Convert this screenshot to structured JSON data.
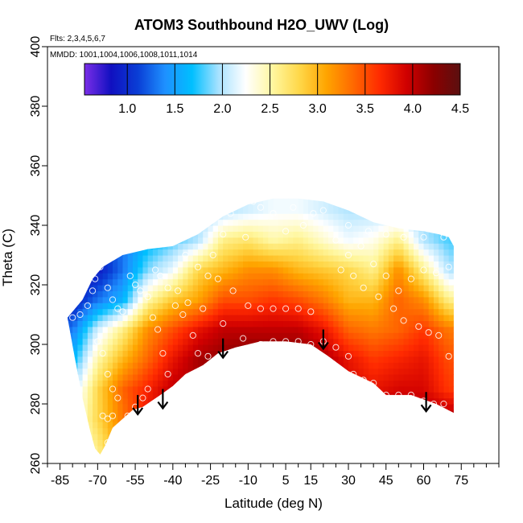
{
  "chart_data": {
    "type": "heatmap",
    "title": "ATOM3 Southbound H2O_UWV (Log)",
    "flights_note": "Flts: 2,3,4,5,6,7",
    "dates_note": "MMDD: 1001,1004,1006,1008,1011,1014",
    "xlabel": "Latitude (deg N)",
    "ylabel": "Theta (C)",
    "xlim": [
      -90,
      90
    ],
    "ylim": [
      260,
      400
    ],
    "x_ticks": [
      -85,
      -70,
      -55,
      -40,
      -25,
      -10,
      5,
      15,
      30,
      45,
      60,
      75
    ],
    "x_tick_labels": [
      "-85",
      "-70",
      "-55",
      "-40",
      "-25",
      "-10",
      "5",
      "15",
      "30",
      "45",
      "60",
      "75"
    ],
    "x_minor_ticks": [
      -90,
      -80,
      -75,
      -65,
      -60,
      -50,
      -45,
      -35,
      -30,
      -20,
      -15,
      -5,
      0,
      10,
      20,
      25,
      35,
      40,
      50,
      55,
      65,
      70,
      80,
      85,
      90
    ],
    "y_ticks": [
      260,
      280,
      300,
      320,
      340,
      360,
      380,
      400
    ],
    "y_tick_labels": [
      "260",
      "280",
      "300",
      "320",
      "340",
      "360",
      "380",
      "400"
    ],
    "colorbar": {
      "range": [
        0.55,
        4.5
      ],
      "ticks": [
        1.0,
        1.5,
        2.0,
        2.5,
        3.0,
        3.5,
        4.0,
        4.5
      ],
      "tick_labels": [
        "1.0",
        "1.5",
        "2.0",
        "2.5",
        "3.0",
        "3.5",
        "4.0",
        "4.5"
      ],
      "colors": [
        "#7b2ee8",
        "#1010c0",
        "#0a3fd6",
        "#1e90ff",
        "#00bfff",
        "#a8e2ff",
        "#ffffff",
        "#fff7a0",
        "#ffd84a",
        "#ffa500",
        "#ff6a00",
        "#ff2a00",
        "#d00000",
        "#8b0000",
        "#5a1010"
      ]
    },
    "upper_boundary": [
      [
        -82,
        309
      ],
      [
        -76,
        315
      ],
      [
        -72,
        322
      ],
      [
        -68,
        326
      ],
      [
        -60,
        330
      ],
      [
        -50,
        332
      ],
      [
        -40,
        333
      ],
      [
        -30,
        337
      ],
      [
        -20,
        343
      ],
      [
        -10,
        347
      ],
      [
        0,
        349
      ],
      [
        10,
        349
      ],
      [
        20,
        348
      ],
      [
        30,
        345
      ],
      [
        40,
        341
      ],
      [
        50,
        339
      ],
      [
        60,
        338
      ],
      [
        66,
        337
      ],
      [
        70,
        336
      ],
      [
        72,
        333
      ]
    ],
    "lower_boundary": [
      [
        72,
        277
      ],
      [
        65,
        280
      ],
      [
        55,
        283
      ],
      [
        45,
        283
      ],
      [
        40,
        287
      ],
      [
        30,
        291
      ],
      [
        22,
        296
      ],
      [
        15,
        300
      ],
      [
        5,
        301
      ],
      [
        -5,
        301
      ],
      [
        -15,
        299
      ],
      [
        -22,
        297
      ],
      [
        -28,
        293
      ],
      [
        -35,
        290
      ],
      [
        -40,
        286
      ],
      [
        -45,
        283
      ],
      [
        -52,
        279
      ],
      [
        -56,
        278
      ],
      [
        -60,
        275
      ],
      [
        -64,
        272
      ],
      [
        -67,
        266
      ],
      [
        -69,
        263
      ],
      [
        -71,
        265
      ],
      [
        -73,
        271
      ],
      [
        -76,
        282
      ],
      [
        -79,
        295
      ],
      [
        -82,
        309
      ]
    ],
    "color_field": {
      "lat_nodes": [
        -80,
        -70,
        -60,
        -50,
        -40,
        -30,
        -20,
        -10,
        0,
        10,
        20,
        30,
        40,
        50,
        60,
        70
      ],
      "theta_nodes": [
        265,
        275,
        285,
        295,
        305,
        315,
        325,
        335,
        345
      ],
      "values": [
        [
          2.3,
          2.6,
          3.2,
          3.7,
          3.9,
          4.0,
          4.1,
          4.1,
          4.1,
          4.1,
          4.0,
          4.0,
          4.1,
          4.1,
          4.1,
          4.1
        ],
        [
          2.2,
          2.8,
          3.3,
          3.8,
          4.0,
          4.1,
          4.1,
          4.1,
          4.1,
          4.1,
          4.0,
          4.0,
          4.1,
          4.1,
          4.1,
          4.1
        ],
        [
          2.0,
          2.8,
          3.4,
          3.7,
          4.0,
          4.1,
          4.2,
          4.2,
          4.2,
          4.2,
          4.1,
          3.9,
          3.8,
          3.9,
          3.9,
          3.6
        ],
        [
          1.6,
          2.5,
          3.0,
          3.4,
          3.8,
          4.1,
          4.2,
          4.3,
          4.3,
          4.3,
          4.1,
          3.8,
          3.6,
          3.7,
          3.8,
          3.5
        ],
        [
          1.3,
          2.1,
          2.6,
          3.2,
          3.5,
          3.8,
          4.0,
          4.0,
          4.0,
          4.0,
          3.8,
          3.4,
          3.3,
          3.4,
          3.6,
          3.3
        ],
        [
          0.9,
          1.3,
          1.6,
          2.5,
          2.9,
          3.1,
          3.5,
          3.5,
          3.6,
          3.5,
          3.3,
          3.0,
          3.0,
          3.4,
          3.2,
          2.6
        ],
        [
          0.8,
          0.9,
          1.3,
          1.9,
          2.2,
          2.8,
          3.0,
          3.2,
          3.2,
          3.0,
          2.9,
          2.8,
          2.6,
          3.2,
          2.6,
          2.0
        ],
        [
          0.9,
          1.0,
          1.3,
          1.6,
          1.8,
          2.0,
          2.6,
          2.7,
          2.5,
          2.6,
          2.4,
          2.2,
          2.3,
          2.6,
          2.0,
          1.8
        ],
        [
          1.0,
          1.2,
          1.4,
          1.6,
          1.8,
          1.9,
          2.0,
          2.1,
          2.2,
          2.2,
          2.1,
          2.0,
          2.0,
          2.0,
          1.9,
          1.8
        ]
      ]
    },
    "obs_points": [
      [
        -80,
        309
      ],
      [
        -77,
        310
      ],
      [
        -74,
        313
      ],
      [
        -72,
        318
      ],
      [
        -71,
        322
      ],
      [
        -69,
        326
      ],
      [
        -66,
        319
      ],
      [
        -64,
        315
      ],
      [
        -62,
        312
      ],
      [
        -60,
        311
      ],
      [
        -70,
        301
      ],
      [
        -68,
        297
      ],
      [
        -66,
        290
      ],
      [
        -64,
        285
      ],
      [
        -62,
        282
      ],
      [
        -68,
        276
      ],
      [
        -66,
        275
      ],
      [
        -64,
        276
      ],
      [
        -66,
        267
      ],
      [
        -57,
        323
      ],
      [
        -55,
        320
      ],
      [
        -53,
        318
      ],
      [
        -50,
        316
      ],
      [
        -47,
        325
      ],
      [
        -45,
        323
      ],
      [
        -42,
        319
      ],
      [
        -48,
        309
      ],
      [
        -46,
        305
      ],
      [
        -44,
        297
      ],
      [
        -42,
        290
      ],
      [
        -50,
        285
      ],
      [
        -52,
        282
      ],
      [
        -55,
        279
      ],
      [
        -58,
        276
      ],
      [
        -39,
        313
      ],
      [
        -36,
        310
      ],
      [
        -32,
        303
      ],
      [
        -30,
        297
      ],
      [
        -26,
        296
      ],
      [
        -28,
        312
      ],
      [
        -24,
        330
      ],
      [
        -20,
        337
      ],
      [
        -17,
        344
      ],
      [
        -14,
        347
      ],
      [
        -11,
        336
      ],
      [
        -8,
        348
      ],
      [
        -5,
        346
      ],
      [
        0,
        344
      ],
      [
        5,
        338
      ],
      [
        8,
        346
      ],
      [
        12,
        340
      ],
      [
        16,
        344
      ],
      [
        20,
        345
      ],
      [
        -16,
        318
      ],
      [
        -10,
        313
      ],
      [
        -5,
        312
      ],
      [
        0,
        312
      ],
      [
        5,
        312
      ],
      [
        10,
        312
      ],
      [
        15,
        311
      ],
      [
        -20,
        307
      ],
      [
        -12,
        302
      ],
      [
        -5,
        300
      ],
      [
        0,
        301
      ],
      [
        5,
        301
      ],
      [
        10,
        301
      ],
      [
        15,
        300
      ],
      [
        20,
        301
      ],
      [
        25,
        299
      ],
      [
        30,
        296
      ],
      [
        32,
        290
      ],
      [
        36,
        288
      ],
      [
        40,
        287
      ],
      [
        45,
        283
      ],
      [
        50,
        283
      ],
      [
        55,
        283
      ],
      [
        60,
        281
      ],
      [
        64,
        280
      ],
      [
        68,
        280
      ],
      [
        70,
        276
      ],
      [
        25,
        335
      ],
      [
        30,
        330
      ],
      [
        35,
        333
      ],
      [
        40,
        327
      ],
      [
        45,
        323
      ],
      [
        50,
        318
      ],
      [
        55,
        322
      ],
      [
        60,
        325
      ],
      [
        65,
        324
      ],
      [
        70,
        326
      ],
      [
        27,
        325
      ],
      [
        32,
        323
      ],
      [
        36,
        319
      ],
      [
        42,
        316
      ],
      [
        48,
        312
      ],
      [
        52,
        308
      ],
      [
        58,
        306
      ],
      [
        62,
        304
      ],
      [
        66,
        303
      ],
      [
        70,
        296
      ],
      [
        30,
        340
      ],
      [
        38,
        338
      ],
      [
        45,
        337
      ],
      [
        52,
        336
      ],
      [
        60,
        336
      ],
      [
        68,
        336
      ],
      [
        -35,
        330
      ],
      [
        -30,
        326
      ],
      [
        -26,
        323
      ],
      [
        -22,
        322
      ],
      [
        -38,
        318
      ],
      [
        -34,
        314
      ]
    ],
    "arrows": [
      {
        "lat": -54,
        "theta": 283
      },
      {
        "lat": -44,
        "theta": 285
      },
      {
        "lat": -20,
        "theta": 302
      },
      {
        "lat": 20,
        "theta": 305
      },
      {
        "lat": 61,
        "theta": 284
      }
    ]
  }
}
